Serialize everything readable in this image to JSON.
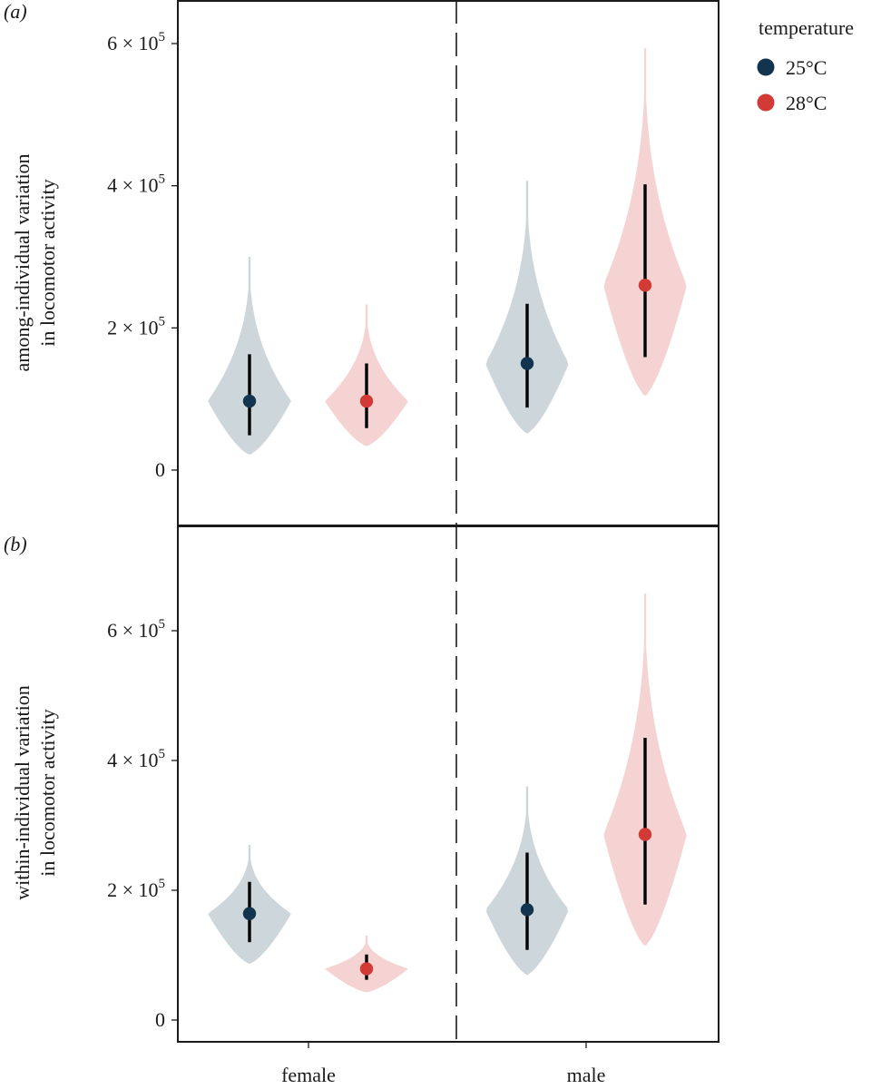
{
  "chart_data": [
    {
      "type": "violin",
      "panel_label": "(a)",
      "ylabel_line1": "among-individual variation",
      "ylabel_line2": "in locomotor activity",
      "categories": [
        "female",
        "male"
      ],
      "ylim": [
        -75000,
        660000
      ],
      "y_ticks": [
        0,
        200000,
        400000,
        600000
      ],
      "y_tick_labels": [
        {
          "base": "0",
          "exp": ""
        },
        {
          "base": "2 × 10",
          "exp": "5"
        },
        {
          "base": "4 × 10",
          "exp": "5"
        },
        {
          "base": "6 × 10",
          "exp": "5"
        }
      ],
      "series": [
        {
          "name": "25°C",
          "color": "#12344f",
          "fill": "#cdd6db",
          "points": [
            {
              "category": "female",
              "mean": 97000,
              "ci": [
                49000,
                163000
              ],
              "range": [
                22000,
                300000
              ]
            },
            {
              "category": "male",
              "mean": 150000,
              "ci": [
                88000,
                234000
              ],
              "range": [
                52000,
                407000
              ]
            }
          ]
        },
        {
          "name": "28°C",
          "color": "#d13a35",
          "fill": "#f6d3d3",
          "points": [
            {
              "category": "female",
              "mean": 97000,
              "ci": [
                59000,
                150000
              ],
              "range": [
                34000,
                233000
              ]
            },
            {
              "category": "male",
              "mean": 260000,
              "ci": [
                159000,
                402000
              ],
              "range": [
                105000,
                593000
              ]
            }
          ]
        }
      ]
    },
    {
      "type": "violin",
      "panel_label": "(b)",
      "ylabel_line1": "within-individual variation",
      "ylabel_line2": "in locomotor activity",
      "categories": [
        "female",
        "male"
      ],
      "xtick_labels": [
        "female",
        "male"
      ],
      "ylim": [
        -15000,
        770000
      ],
      "y_ticks": [
        0,
        200000,
        400000,
        600000
      ],
      "y_tick_labels": [
        {
          "base": "0",
          "exp": ""
        },
        {
          "base": "2 × 10",
          "exp": "5"
        },
        {
          "base": "4 × 10",
          "exp": "5"
        },
        {
          "base": "6 × 10",
          "exp": "5"
        }
      ],
      "series": [
        {
          "name": "25°C",
          "color": "#12344f",
          "fill": "#cdd6db",
          "points": [
            {
              "category": "female",
              "mean": 164000,
              "ci": [
                120000,
                213000
              ],
              "range": [
                87000,
                270000
              ]
            },
            {
              "category": "male",
              "mean": 170000,
              "ci": [
                108000,
                258000
              ],
              "range": [
                70000,
                360000
              ]
            }
          ]
        },
        {
          "name": "28°C",
          "color": "#d13a35",
          "fill": "#f6d3d3",
          "points": [
            {
              "category": "female",
              "mean": 79000,
              "ci": [
                62000,
                101000
              ],
              "range": [
                43000,
                130000
              ]
            },
            {
              "category": "male",
              "mean": 286000,
              "ci": [
                178000,
                435000
              ],
              "range": [
                115000,
                657000
              ]
            }
          ]
        }
      ]
    }
  ],
  "legend": {
    "title": "temperature",
    "placement": "top-right",
    "items": [
      {
        "label": "25°C",
        "color": "#12344f"
      },
      {
        "label": "28°C",
        "color": "#d13a35"
      }
    ]
  }
}
